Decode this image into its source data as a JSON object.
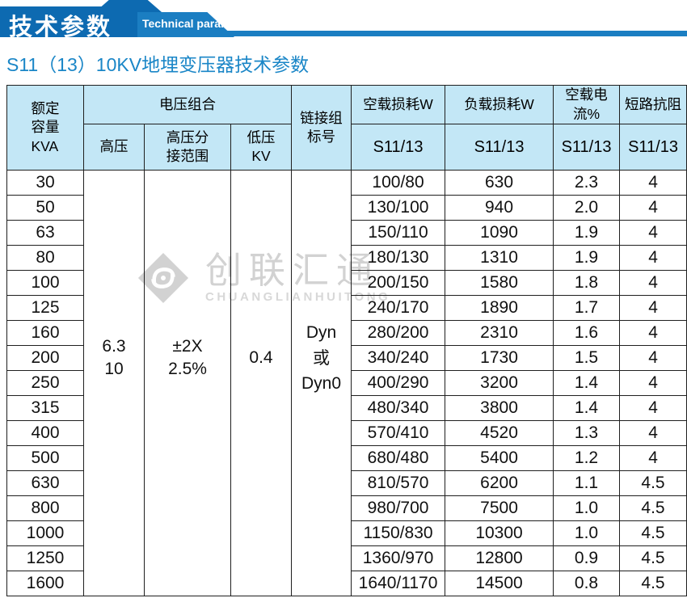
{
  "banner": {
    "title_cn": "技术参数",
    "title_en": "Technical parameter",
    "color_dark": "#0d6ab1",
    "color_light": "#1b7ec2"
  },
  "subtitle": "S11（13）10KV地埋变压器技术参数",
  "watermark": {
    "logo_icon": "diamond-swirl-logo",
    "name_cn": "创联汇通",
    "name_en": "CHUANGLIANHUITONG"
  },
  "table": {
    "header_bg": "#c3e7f6",
    "headers": {
      "capacity": "额定\n容量\nKVA",
      "voltage_group": "电压组合",
      "hv": "高压",
      "hv_tap": "高压分\n接范围",
      "lv": "低压\nKV",
      "vector_group": "链接组\n标号",
      "noload_loss": "空载损耗W",
      "load_loss": "负载损耗W",
      "noload_current": "空载电流%",
      "impedance": "短路抗阻",
      "sub_noload_loss": "S11/13",
      "sub_load_loss": "S11/13",
      "sub_noload_current": "S11/13",
      "sub_impedance": "S11/13"
    },
    "merged": {
      "hv": "6.3\n10",
      "hv_tap": "±2X\n2.5%",
      "lv": "0.4",
      "vector_group": "Dyn\n或\nDyn0"
    },
    "rows": [
      {
        "kva": "30",
        "noload_loss": "100/80",
        "load_loss": "630",
        "noload_current": "2.3",
        "impedance": "4"
      },
      {
        "kva": "50",
        "noload_loss": "130/100",
        "load_loss": "940",
        "noload_current": "2.0",
        "impedance": "4"
      },
      {
        "kva": "63",
        "noload_loss": "150/110",
        "load_loss": "1090",
        "noload_current": "1.9",
        "impedance": "4"
      },
      {
        "kva": "80",
        "noload_loss": "180/130",
        "load_loss": "1310",
        "noload_current": "1.9",
        "impedance": "4"
      },
      {
        "kva": "100",
        "noload_loss": "200/150",
        "load_loss": "1580",
        "noload_current": "1.8",
        "impedance": "4"
      },
      {
        "kva": "125",
        "noload_loss": "240/170",
        "load_loss": "1890",
        "noload_current": "1.7",
        "impedance": "4"
      },
      {
        "kva": "160",
        "noload_loss": "280/200",
        "load_loss": "2310",
        "noload_current": "1.6",
        "impedance": "4"
      },
      {
        "kva": "200",
        "noload_loss": "340/240",
        "load_loss": "1730",
        "noload_current": "1.5",
        "impedance": "4"
      },
      {
        "kva": "250",
        "noload_loss": "400/290",
        "load_loss": "3200",
        "noload_current": "1.4",
        "impedance": "4"
      },
      {
        "kva": "315",
        "noload_loss": "480/340",
        "load_loss": "3800",
        "noload_current": "1.4",
        "impedance": "4"
      },
      {
        "kva": "400",
        "noload_loss": "570/410",
        "load_loss": "4520",
        "noload_current": "1.3",
        "impedance": "4"
      },
      {
        "kva": "500",
        "noload_loss": "680/480",
        "load_loss": "5400",
        "noload_current": "1.2",
        "impedance": "4"
      },
      {
        "kva": "630",
        "noload_loss": "810/570",
        "load_loss": "6200",
        "noload_current": "1.1",
        "impedance": "4.5"
      },
      {
        "kva": "800",
        "noload_loss": "980/700",
        "load_loss": "7500",
        "noload_current": "1.0",
        "impedance": "4.5"
      },
      {
        "kva": "1000",
        "noload_loss": "1150/830",
        "load_loss": "10300",
        "noload_current": "1.0",
        "impedance": "4.5"
      },
      {
        "kva": "1250",
        "noload_loss": "1360/970",
        "load_loss": "12800",
        "noload_current": "0.9",
        "impedance": "4.5"
      },
      {
        "kva": "1600",
        "noload_loss": "1640/1170",
        "load_loss": "14500",
        "noload_current": "0.8",
        "impedance": "4.5"
      }
    ]
  }
}
